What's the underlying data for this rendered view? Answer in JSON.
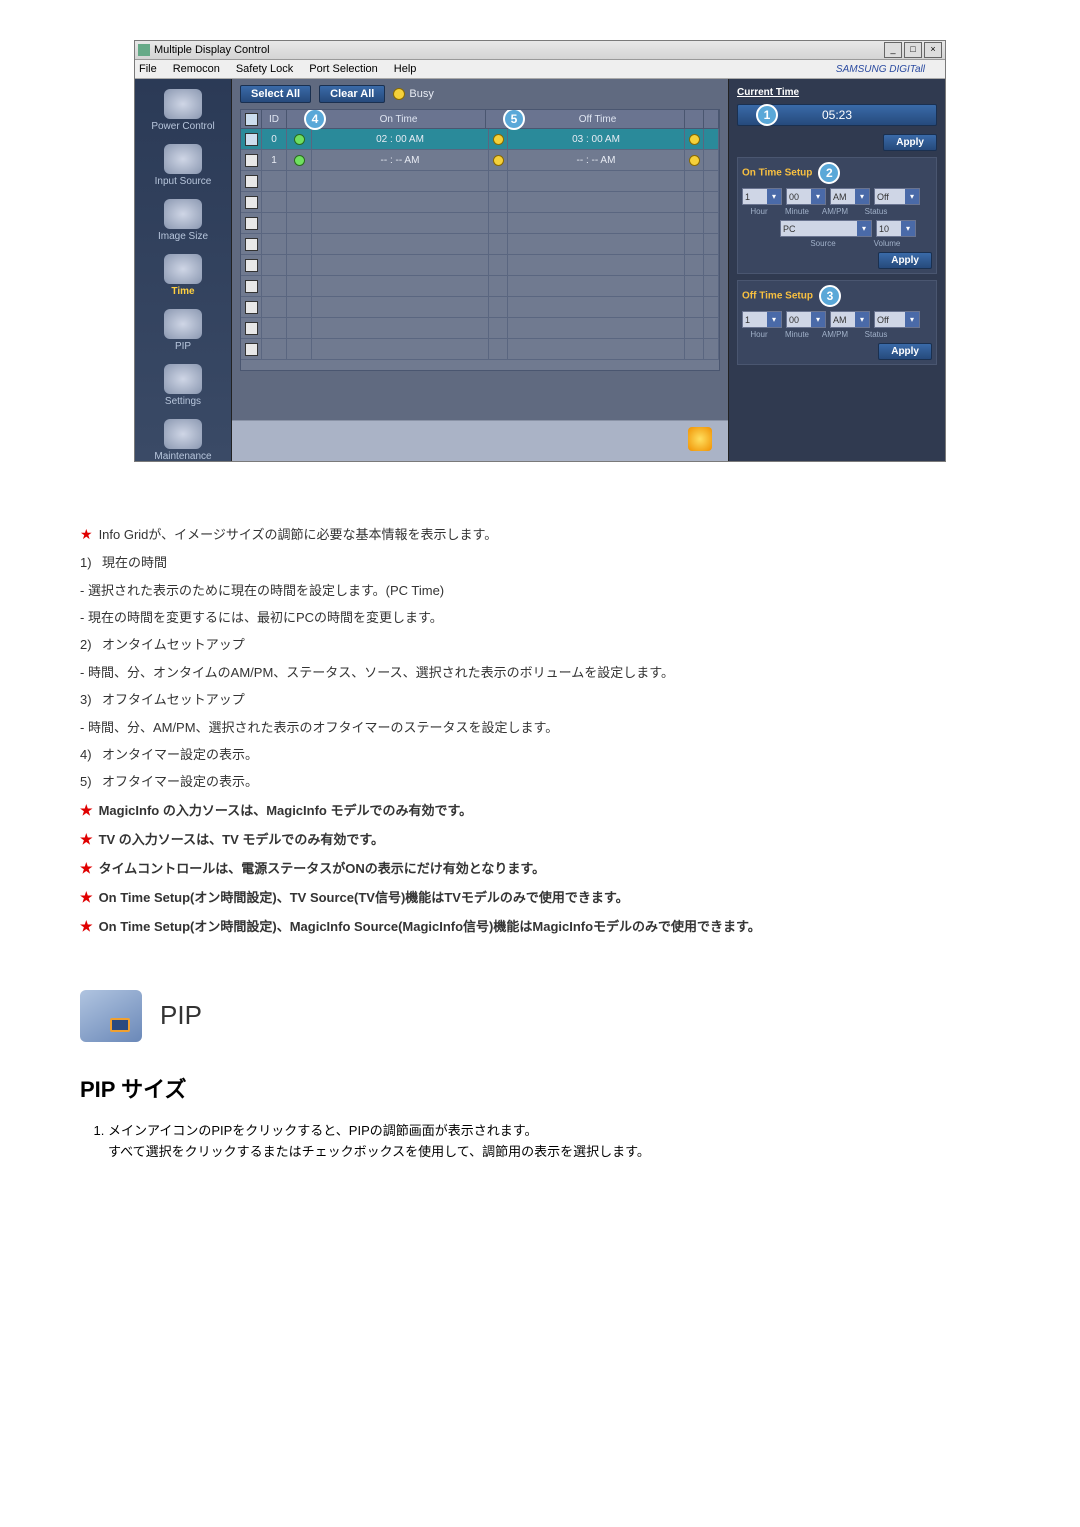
{
  "screenshot": {
    "window_title": "Multiple Display Control",
    "menus": [
      "File",
      "Remocon",
      "Safety Lock",
      "Port Selection",
      "Help"
    ],
    "brand": "SAMSUNG DIGITall",
    "sidebar": [
      {
        "label": "Power Control"
      },
      {
        "label": "Input Source"
      },
      {
        "label": "Image Size"
      },
      {
        "label": "Time"
      },
      {
        "label": "PIP"
      },
      {
        "label": "Settings"
      },
      {
        "label": "Maintenance"
      }
    ],
    "sidebar_active_index": 3,
    "buttons": {
      "select_all": "Select All",
      "clear_all": "Clear All"
    },
    "busy": "Busy",
    "columns": {
      "id": "ID",
      "on": "On Time",
      "off": "Off Time"
    },
    "col_badges": {
      "on": "4",
      "off": "5"
    },
    "rows": [
      {
        "sel": true,
        "id": "0",
        "dot1": "g",
        "on": "02 : 00 AM",
        "dot2": "y",
        "off": "03 : 00 AM",
        "dot3": "y"
      },
      {
        "sel": false,
        "id": "1",
        "dot1": "g",
        "on": "-- : -- AM",
        "dot2": "y",
        "off": "-- : -- AM",
        "dot3": "y"
      },
      {
        "sel": false,
        "id": "",
        "dot1": "",
        "on": "",
        "dot2": "",
        "off": "",
        "dot3": ""
      },
      {
        "sel": false,
        "id": "",
        "dot1": "",
        "on": "",
        "dot2": "",
        "off": "",
        "dot3": ""
      },
      {
        "sel": false,
        "id": "",
        "dot1": "",
        "on": "",
        "dot2": "",
        "off": "",
        "dot3": ""
      },
      {
        "sel": false,
        "id": "",
        "dot1": "",
        "on": "",
        "dot2": "",
        "off": "",
        "dot3": ""
      },
      {
        "sel": false,
        "id": "",
        "dot1": "",
        "on": "",
        "dot2": "",
        "off": "",
        "dot3": ""
      },
      {
        "sel": false,
        "id": "",
        "dot1": "",
        "on": "",
        "dot2": "",
        "off": "",
        "dot3": ""
      },
      {
        "sel": false,
        "id": "",
        "dot1": "",
        "on": "",
        "dot2": "",
        "off": "",
        "dot3": ""
      },
      {
        "sel": false,
        "id": "",
        "dot1": "",
        "on": "",
        "dot2": "",
        "off": "",
        "dot3": ""
      },
      {
        "sel": false,
        "id": "",
        "dot1": "",
        "on": "",
        "dot2": "",
        "off": "",
        "dot3": ""
      }
    ],
    "right": {
      "current_time_label": "Current Time",
      "current_time_value": "05:23",
      "current_time_badge": "1",
      "apply": "Apply",
      "on_setup_label": "On Time Setup",
      "on_setup_badge": "2",
      "on_fields": {
        "hour": "1",
        "minute": "00",
        "ampm": "AM",
        "status": "Off"
      },
      "on_labels": {
        "hour": "Hour",
        "minute": "Minute",
        "ampm": "AM/PM",
        "status": "Status"
      },
      "on_source": {
        "source": "PC",
        "volume": "10"
      },
      "on_source_labels": {
        "source": "Source",
        "volume": "Volume"
      },
      "off_setup_label": "Off Time Setup",
      "off_setup_badge": "3",
      "off_fields": {
        "hour": "1",
        "minute": "00",
        "ampm": "AM",
        "status": "Off"
      },
      "off_labels": {
        "hour": "Hour",
        "minute": "Minute",
        "ampm": "AM/PM",
        "status": "Status"
      }
    }
  },
  "notes": {
    "star1": "Info Gridが、イメージサイズの調節に必要な基本情報を表示します。",
    "n1_head": "現在の時間",
    "n1_a": "- 選択された表示のために現在の時間を設定します。(PC Time)",
    "n1_b": "- 現在の時間を変更するには、最初にPCの時間を変更します。",
    "n2_head": "オンタイムセットアップ",
    "n2_a": "- 時間、分、オンタイムのAM/PM、ステータス、ソース、選択された表示のボリュームを設定します。",
    "n3_head": "オフタイムセットアップ",
    "n3_a": "- 時間、分、AM/PM、選択された表示のオフタイマーのステータスを設定します。",
    "n4": "オンタイマー設定の表示。",
    "n5": "オフタイマー設定の表示。",
    "star2": "MagicInfo の入力ソースは、MagicInfo モデルでのみ有効です。",
    "star3": "TV の入力ソースは、TV モデルでのみ有効です。",
    "star4": "タイムコントロールは、電源ステータスがONの表示にだけ有効となります。",
    "star5": "On Time Setup(オン時間設定)、TV Source(TV信号)機能はTVモデルのみで使用できます。",
    "star6": "On Time Setup(オン時間設定)、MagicInfo Source(MagicInfo信号)機能はMagicInfoモデルのみで使用できます。"
  },
  "pip": {
    "section_label": "PIP",
    "subhead": "PIP サイズ",
    "li1": "メインアイコンのPIPをクリックすると、PIPの調節画面が表示されます。",
    "li1_sub": "すべて選択をクリックするまたはチェックボックスを使用して、調節用の表示を選択します。"
  }
}
